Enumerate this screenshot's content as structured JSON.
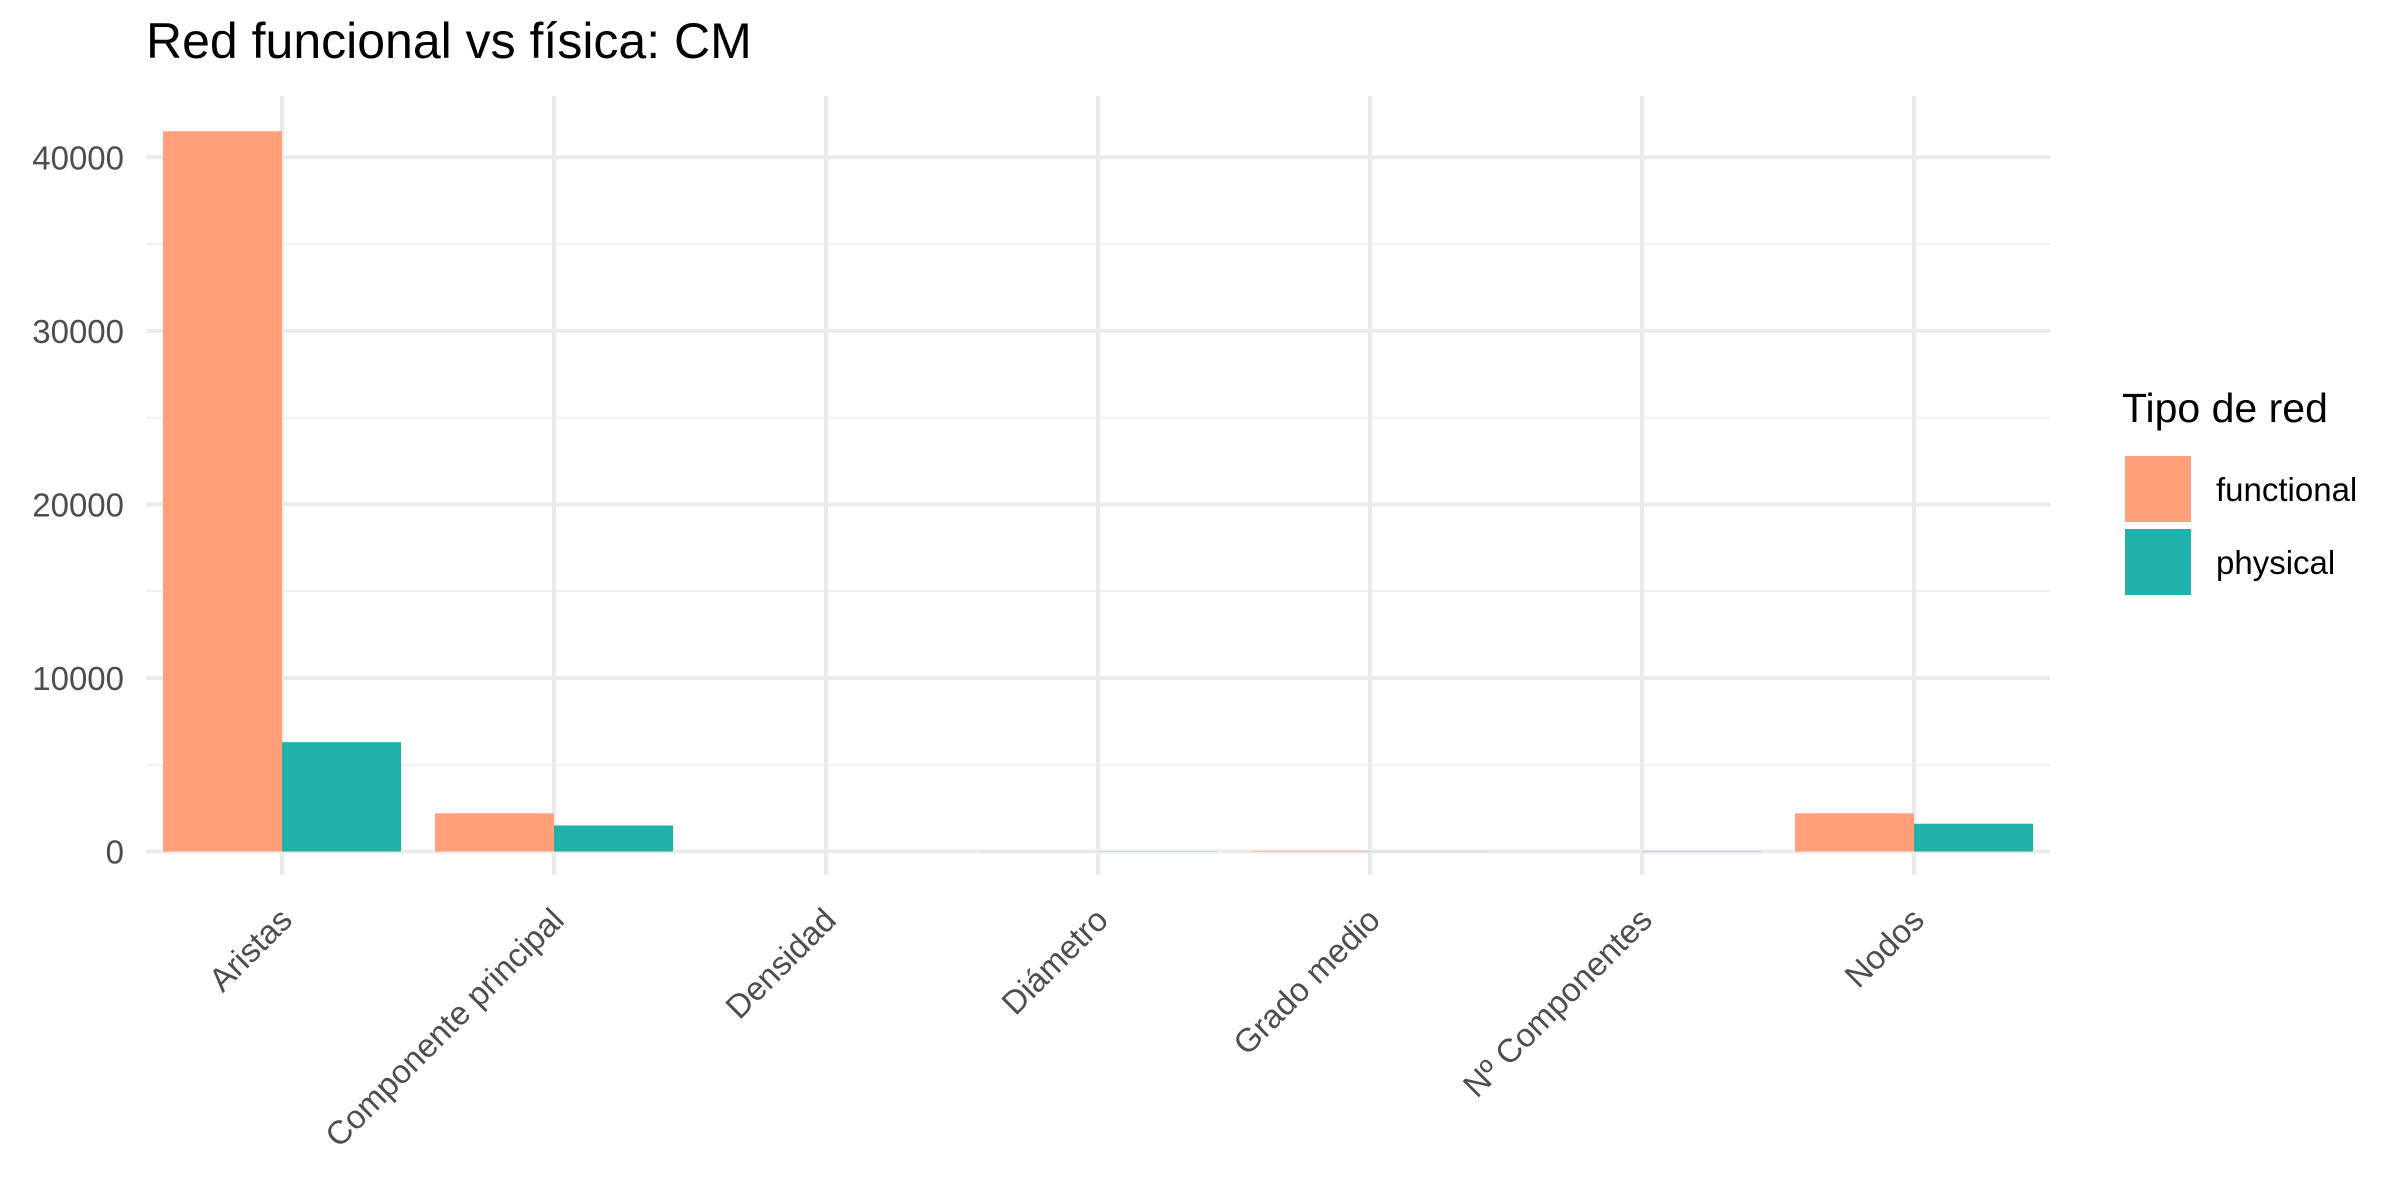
{
  "chart_data": {
    "type": "bar",
    "title": "Red funcional vs física: CM",
    "xlabel": "",
    "ylabel": "",
    "categories": [
      "Aristas",
      "Componente principal",
      "Densidad",
      "Diámetro",
      "Grado medio",
      "Nº Componentes",
      "Nodos"
    ],
    "series": [
      {
        "name": "functional",
        "color": "#FFA07A",
        "values": [
          41500,
          2200,
          0.02,
          8,
          38,
          1,
          2200
        ]
      },
      {
        "name": "physical",
        "color": "#20B2AA",
        "values": [
          6300,
          1500,
          0.005,
          12,
          8,
          18,
          1600
        ]
      }
    ],
    "ylim": [
      0,
      43500
    ],
    "yticks": [
      0,
      10000,
      20000,
      30000,
      40000
    ],
    "grid": true,
    "legend": {
      "title": "Tipo de red",
      "position": "right"
    }
  }
}
